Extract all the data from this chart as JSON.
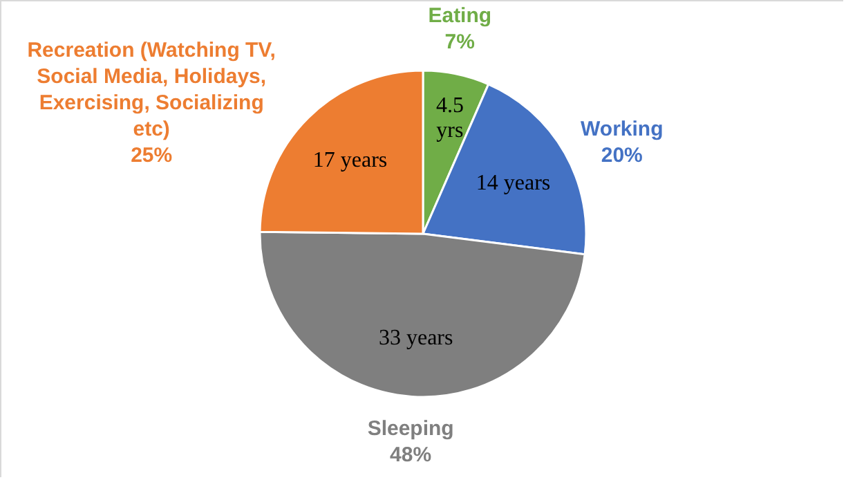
{
  "chart_data": {
    "type": "pie",
    "categories": [
      "Eating",
      "Working",
      "Sleeping",
      "Recreation (Watching TV, Social Media, Holidays, Exercising, Socializing etc)"
    ],
    "values": [
      4.5,
      14,
      33,
      17
    ],
    "colors": [
      "#70ad47",
      "#4472c4",
      "#7f7f7f",
      "#ed7d31"
    ],
    "value_labels": [
      "4.5 yrs",
      "14 years",
      "33 years",
      "17 years"
    ],
    "annotations": [
      {
        "text": "7%",
        "x": "Eating"
      },
      {
        "text": "20%",
        "x": "Working"
      },
      {
        "text": "48%",
        "x": "Sleeping"
      },
      {
        "text": "25%",
        "x": "Recreation (Watching TV, Social Media, Holidays, Exercising, Socializing etc)"
      }
    ]
  }
}
